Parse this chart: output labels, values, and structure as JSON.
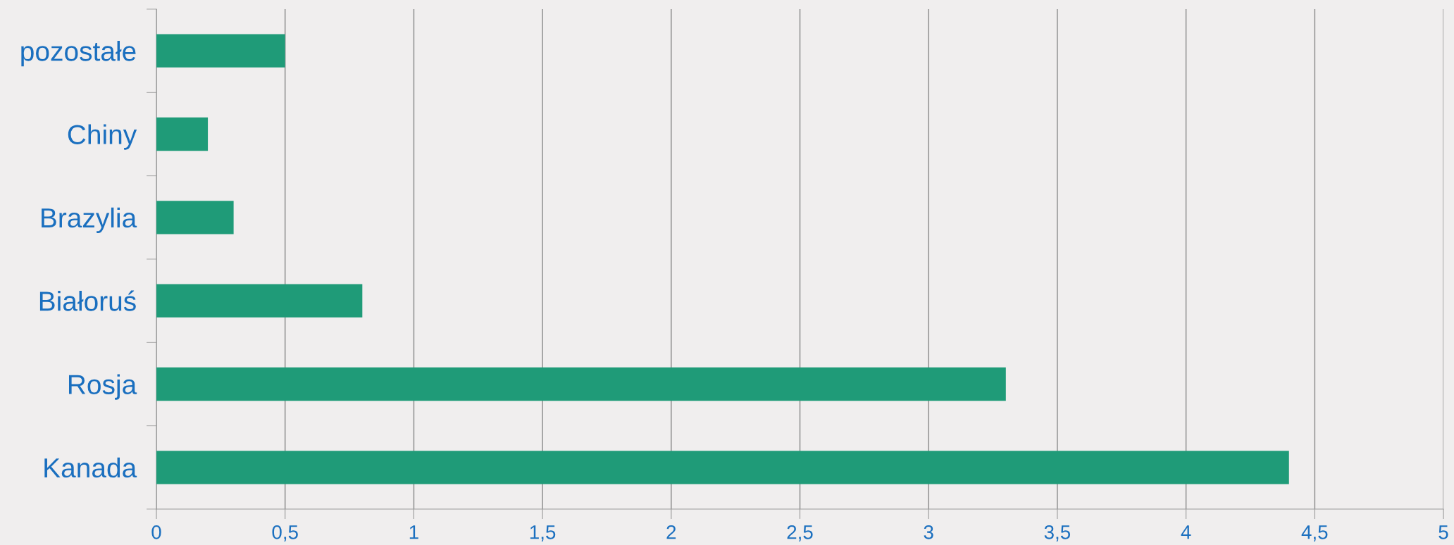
{
  "chart_data": {
    "type": "bar",
    "orientation": "horizontal",
    "categories": [
      "pozostałe",
      "Chiny",
      "Brazylia",
      "Białoruś",
      "Rosja",
      "Kanada"
    ],
    "values": [
      0.5,
      0.2,
      0.3,
      0.8,
      3.3,
      4.4
    ],
    "color": "#1f9b78",
    "xlim": [
      0,
      5
    ],
    "xticks": [
      0,
      {
        "value": 0.5,
        "label": "0,5"
      },
      1,
      {
        "value": 1.5,
        "label": "1,5"
      },
      2,
      {
        "value": 2.5,
        "label": "2,5"
      },
      3,
      {
        "value": 3.5,
        "label": "3,5"
      },
      4,
      {
        "value": 4.5,
        "label": "4,5"
      },
      5
    ],
    "grid": "x",
    "legend": false
  }
}
